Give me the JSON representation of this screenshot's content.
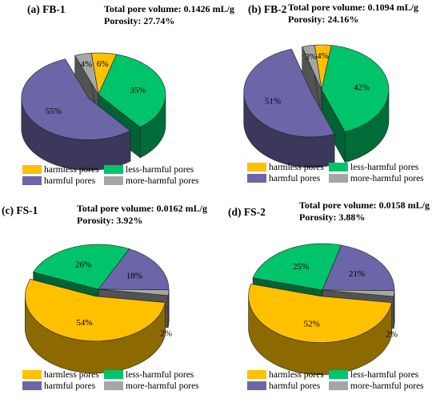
{
  "colors": {
    "harmless": "#FFC000",
    "less_harmful": "#00C46A",
    "harmful": "#6B66A8",
    "more_harmful": "#A6A6A6"
  },
  "chart_data": [
    {
      "type": "pie",
      "title": "(a) FB-1",
      "info": [
        "Total pore volume: 0.1426 mL/g",
        "Porosity: 27.74%"
      ],
      "labels": [
        "harmless pores",
        "less-harmful pores",
        "harmful pores",
        "more-harmful pores"
      ],
      "values": [
        6,
        35,
        55,
        4
      ],
      "value_labels": [
        "6%",
        "35%",
        "55%",
        "4%"
      ],
      "legend": [
        "harmless pores",
        "less-harmful pores",
        "harmful pores",
        "more-harmful pores"
      ]
    },
    {
      "type": "pie",
      "title": "(b) FB-2",
      "info": [
        "Total pore volume: 0.1094 mL/g",
        "Porosity: 24.16%"
      ],
      "labels": [
        "harmless pores",
        "less-harmful pores",
        "harmful pores",
        "more-harmful pores"
      ],
      "values": [
        4,
        42,
        51,
        3
      ],
      "value_labels": [
        "4%",
        "42%",
        "51%",
        "3%"
      ],
      "legend": [
        "harmless pores",
        "less-harmful pores",
        "harmful pores",
        "more-harmful pores"
      ]
    },
    {
      "type": "pie",
      "title": "(c) FS-1",
      "info": [
        "Total pore volume: 0.0162 mL/g",
        "Porosity: 3.92%"
      ],
      "labels": [
        "harmless pores",
        "less-harmful pores",
        "harmful pores",
        "more-harmful pores"
      ],
      "values": [
        54,
        26,
        18,
        2
      ],
      "value_labels": [
        "54%",
        "26%",
        "18%",
        "2%"
      ],
      "legend": [
        "harmless pores",
        "less-harmful pores",
        "harmful pores",
        "more-harmful pores"
      ]
    },
    {
      "type": "pie",
      "title": "(d) FS-2",
      "info": [
        "Total pore volume: 0.0158 mL/g",
        "Porosity: 3.88%"
      ],
      "labels": [
        "harmless pores",
        "less-harmful pores",
        "harmful pores",
        "more-harmful pores"
      ],
      "values": [
        52,
        25,
        21,
        2
      ],
      "value_labels": [
        "52%",
        "25%",
        "21%",
        "2%"
      ],
      "legend": [
        "harmless pores",
        "less-harmful pores",
        "harmful pores",
        "more-harmful pores"
      ]
    }
  ]
}
